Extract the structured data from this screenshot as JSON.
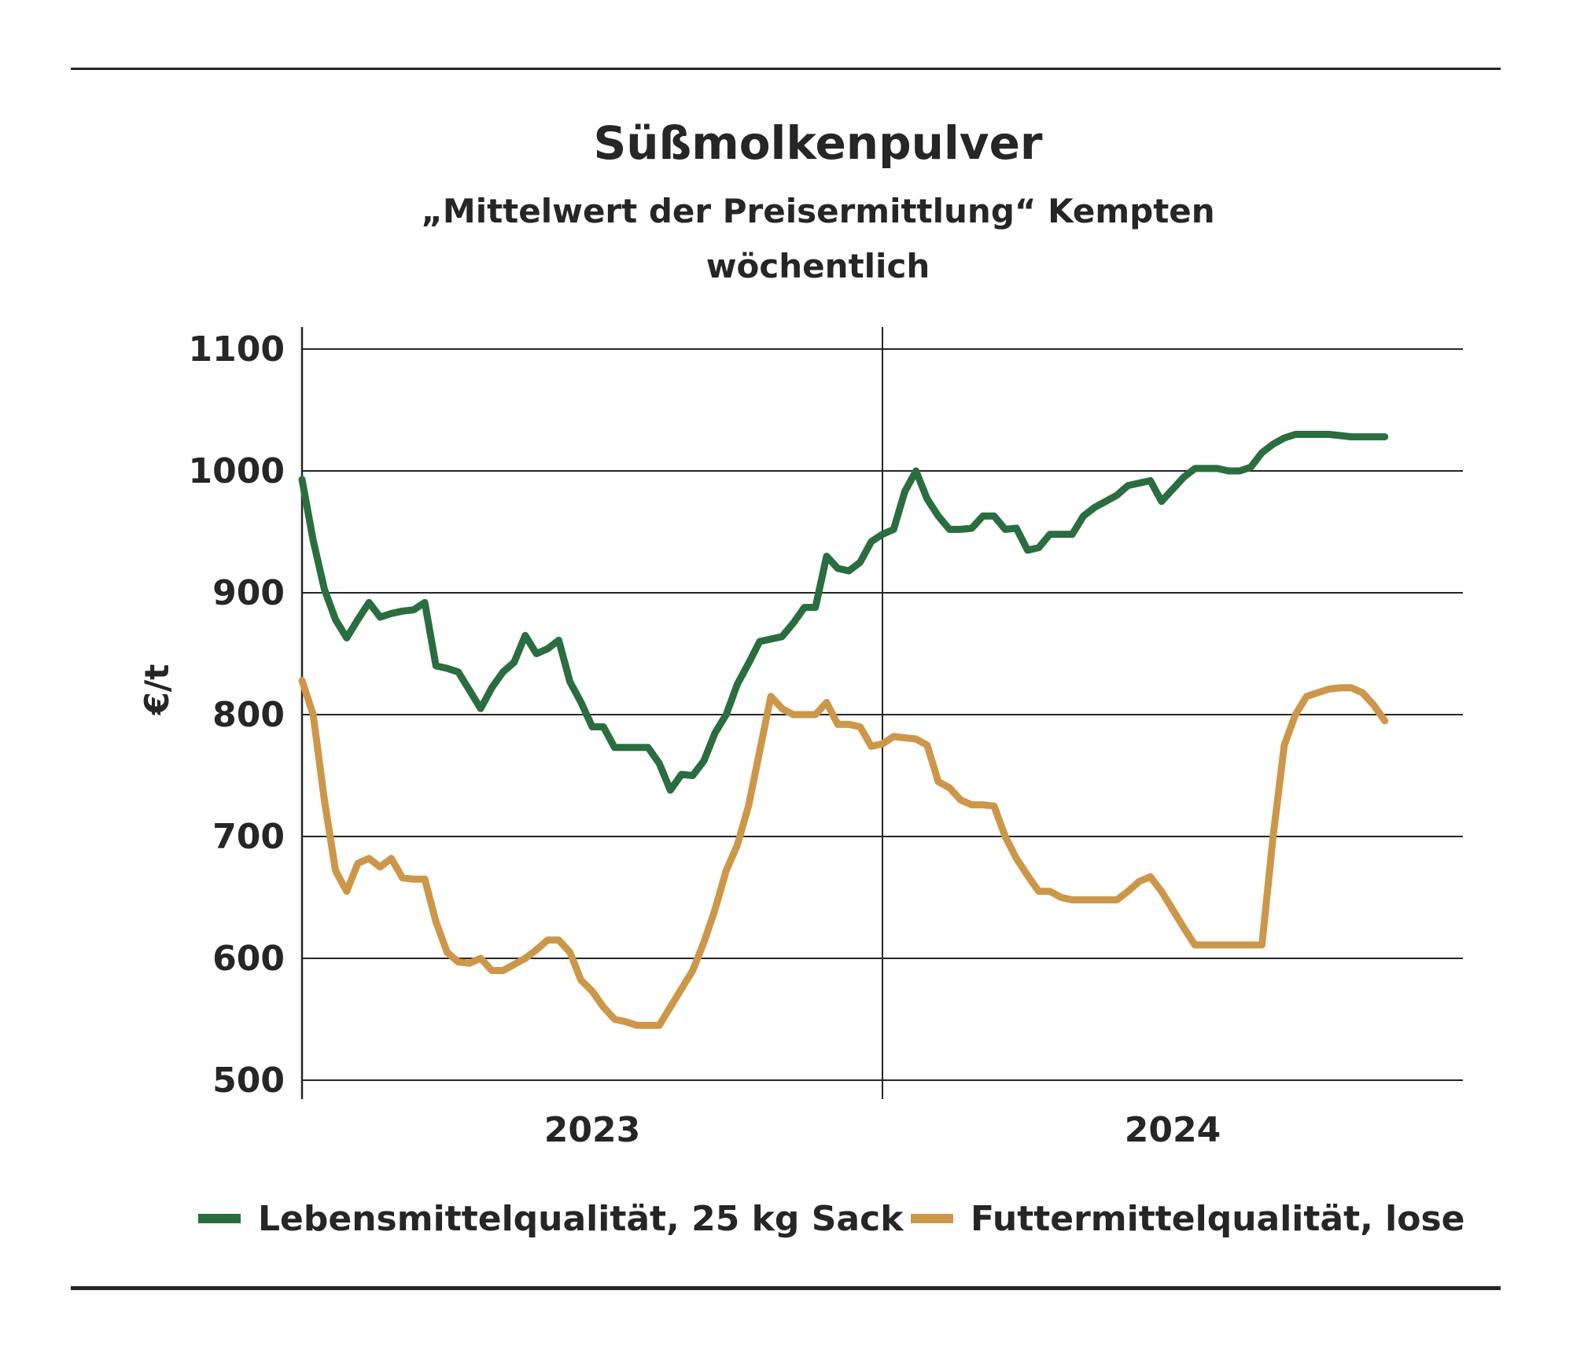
{
  "chart_data": {
    "type": "line",
    "title": "Süßmolkenpulver",
    "subtitle_line1": "„Mittelwert der Preisermittlung“ Kempten",
    "subtitle_line2": "wöchentlich",
    "xlabel": "",
    "ylabel": "€/t",
    "ylim": [
      500,
      1100
    ],
    "yticks": [
      500,
      600,
      700,
      800,
      900,
      1000,
      1100
    ],
    "ytick_labels": [
      "500",
      "600",
      "700",
      "800",
      "900",
      "1000",
      "1100"
    ],
    "x_unit": "weeks",
    "x_range": [
      0,
      104
    ],
    "x_year_labels": [
      {
        "label": "2023",
        "center_week": 26
      },
      {
        "label": "2024",
        "center_week": 78
      }
    ],
    "x_year_separator_week": 52,
    "grid": "horizontal",
    "legend_position": "bottom",
    "series": [
      {
        "name": "Lebensmittelqualität, 25 kg Sack",
        "color": "#2a6e3f",
        "x": [
          0,
          1,
          2,
          3,
          4,
          5,
          6,
          7,
          8,
          9,
          10,
          11,
          12,
          13,
          14,
          15,
          16,
          17,
          18,
          19,
          20,
          21,
          22,
          23,
          24,
          25,
          26,
          27,
          28,
          29,
          30,
          31,
          32,
          33,
          34,
          35,
          36,
          37,
          38,
          39,
          40,
          41,
          42,
          43,
          44,
          45,
          46,
          47,
          48,
          49,
          50,
          51,
          52,
          53,
          54,
          55,
          56,
          57,
          58,
          59,
          60,
          61,
          62,
          63,
          64,
          65,
          66,
          67,
          68,
          69,
          70,
          71,
          72,
          73,
          74,
          75,
          76,
          77,
          78,
          79,
          80,
          81,
          82,
          83,
          84,
          85,
          86,
          87,
          88,
          89,
          90,
          91,
          92,
          93,
          94,
          95,
          96,
          97
        ],
        "values": [
          993,
          943,
          903,
          878,
          863,
          878,
          892,
          880,
          883,
          885,
          886,
          892,
          840,
          838,
          835,
          820,
          805,
          822,
          835,
          843,
          865,
          850,
          854,
          861,
          827,
          810,
          790,
          790,
          773,
          773,
          773,
          773,
          760,
          738,
          751,
          750,
          762,
          785,
          800,
          825,
          842,
          860,
          862,
          864,
          875,
          888,
          888,
          930,
          920,
          918,
          925,
          942,
          948,
          952,
          983,
          1000,
          977,
          963,
          952,
          952,
          953,
          963,
          963,
          952,
          953,
          935,
          937,
          948,
          948,
          948,
          963,
          970,
          975,
          980,
          988,
          990,
          992,
          975,
          985,
          995,
          1002,
          1002,
          1002,
          1000,
          1000,
          1003,
          1015,
          1022,
          1027,
          1030,
          1030,
          1030,
          1030,
          1029,
          1028,
          1028,
          1028,
          1028
        ]
      },
      {
        "name": "Futtermittelqualität, lose",
        "color": "#cd974a",
        "x": [
          0,
          1,
          2,
          3,
          4,
          5,
          6,
          7,
          8,
          9,
          10,
          11,
          12,
          13,
          14,
          15,
          16,
          17,
          18,
          19,
          20,
          21,
          22,
          23,
          24,
          25,
          26,
          27,
          28,
          29,
          30,
          31,
          32,
          33,
          34,
          35,
          36,
          37,
          38,
          39,
          40,
          41,
          42,
          43,
          44,
          45,
          46,
          47,
          48,
          49,
          50,
          51,
          52,
          53,
          54,
          55,
          56,
          57,
          58,
          59,
          60,
          61,
          62,
          63,
          64,
          65,
          66,
          67,
          68,
          69,
          70,
          71,
          72,
          73,
          74,
          75,
          76,
          77,
          78,
          79,
          80,
          81,
          82,
          83,
          84,
          85,
          86,
          87,
          88,
          89,
          90,
          91,
          92,
          93,
          94,
          95,
          96,
          97
        ],
        "values": [
          828,
          800,
          730,
          672,
          655,
          678,
          682,
          675,
          682,
          666,
          665,
          665,
          630,
          605,
          597,
          596,
          600,
          590,
          590,
          595,
          600,
          607,
          615,
          615,
          605,
          582,
          573,
          560,
          550,
          548,
          545,
          545,
          545,
          560,
          575,
          590,
          613,
          640,
          672,
          693,
          725,
          770,
          815,
          805,
          800,
          800,
          800,
          810,
          792,
          792,
          790,
          774,
          776,
          782,
          781,
          780,
          775,
          745,
          740,
          730,
          726,
          726,
          725,
          700,
          682,
          668,
          655,
          655,
          650,
          648,
          648,
          648,
          648,
          648,
          655,
          663,
          667,
          655,
          640,
          625,
          611,
          611,
          611,
          611,
          611,
          611,
          611,
          700,
          775,
          800,
          815,
          818,
          821,
          822,
          822,
          818,
          808,
          795
        ]
      }
    ]
  }
}
